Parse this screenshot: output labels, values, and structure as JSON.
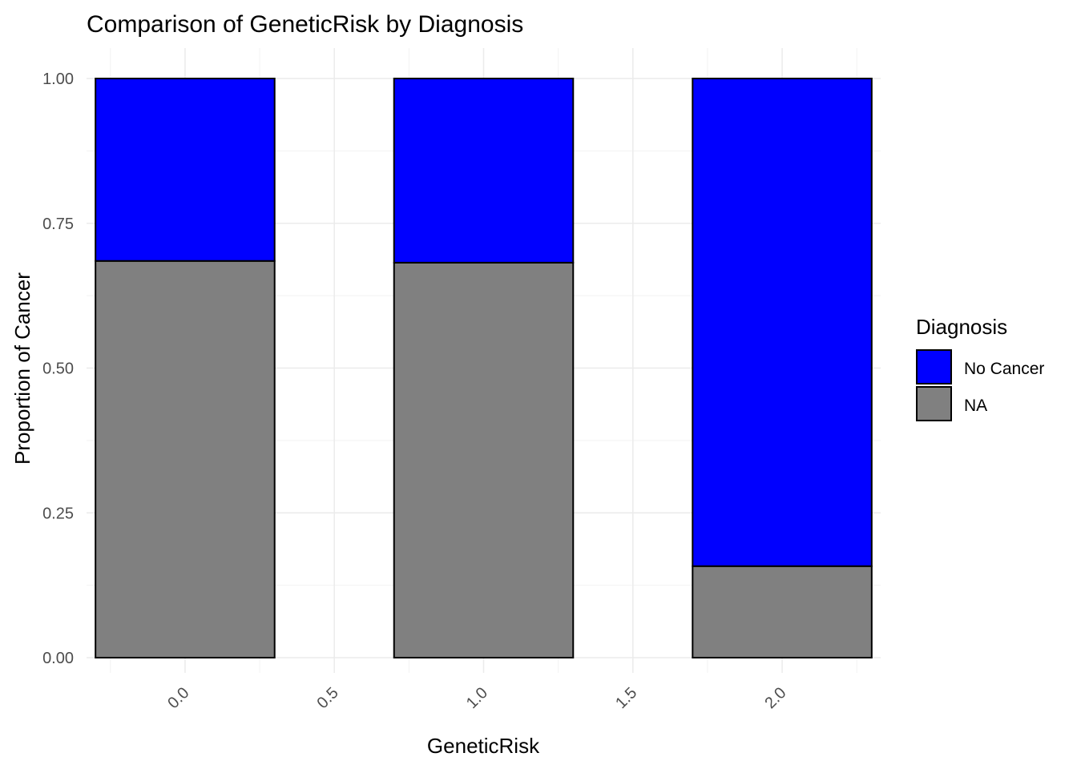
{
  "chart_data": {
    "type": "bar",
    "stacked": true,
    "title": "Comparison of GeneticRisk by Diagnosis",
    "xlabel": "GeneticRisk",
    "ylabel": "Proportion of Cancer",
    "x_ticks": [
      "0.0",
      "0.5",
      "1.0",
      "1.5",
      "2.0"
    ],
    "y_ticks": [
      "0.00",
      "0.25",
      "0.50",
      "0.75",
      "1.00"
    ],
    "xlim": [
      -0.33,
      2.33
    ],
    "ylim": [
      0,
      1.04
    ],
    "x": [
      0,
      1,
      2
    ],
    "bar_width": 0.6,
    "series": [
      {
        "name": "NA",
        "color": "#808080",
        "values": [
          0.685,
          0.682,
          0.158
        ]
      },
      {
        "name": "No Cancer",
        "color": "#0000ff",
        "values": [
          0.315,
          0.318,
          0.842
        ]
      }
    ],
    "legend": {
      "title": "Diagnosis",
      "position": "right",
      "entries": [
        {
          "label": "No Cancer",
          "color": "#0000ff"
        },
        {
          "label": "NA",
          "color": "#808080"
        }
      ]
    },
    "grid": true,
    "tick_label_rotation": -45
  }
}
